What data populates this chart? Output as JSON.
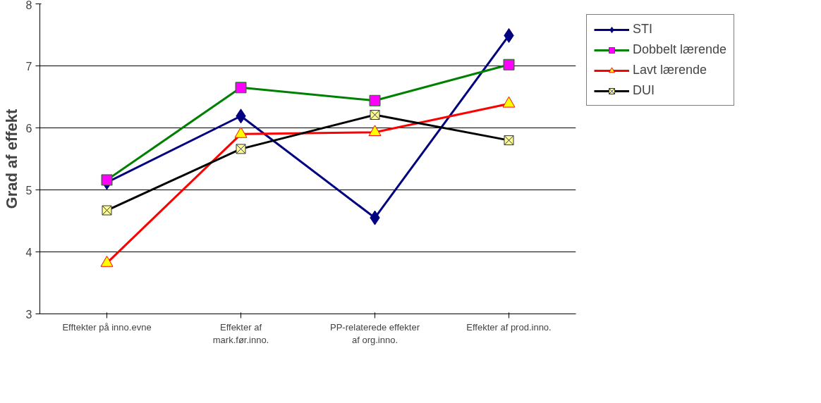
{
  "chart_data": {
    "type": "line",
    "ylabel": "Grad af effekt",
    "categories": [
      "Efftekter på inno.evne",
      "Effekter af mark.før.inno.",
      "PP-relaterede effekter af org.inno.",
      "Effekter af prod.inno."
    ],
    "series": [
      {
        "name": "STI",
        "color": "#000080",
        "marker": "diamond",
        "values": [
          5.12,
          6.19,
          4.55,
          7.49
        ]
      },
      {
        "name": "Dobbelt lærende",
        "color": "#008000",
        "marker": "square",
        "values": [
          5.16,
          6.65,
          6.44,
          7.02
        ]
      },
      {
        "name": "Lavt lærende",
        "color": "#ff0000",
        "marker": "triangle",
        "values": [
          3.82,
          5.9,
          5.93,
          6.39
        ]
      },
      {
        "name": "DUI",
        "color": "#000000",
        "marker": "cross",
        "values": [
          4.67,
          5.66,
          6.21,
          5.8
        ]
      }
    ],
    "ylim": [
      3,
      8
    ],
    "yticks": [
      3,
      4,
      5,
      6,
      7,
      8
    ],
    "grid": "y",
    "legend": "right",
    "line_style": "solid"
  }
}
